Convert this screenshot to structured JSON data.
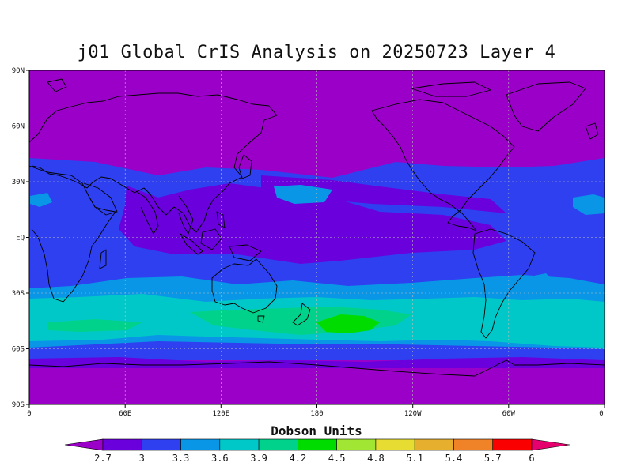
{
  "title": "j01 Global CrIS Analysis on 20250723 Layer 4",
  "colorbar_title": "Dobson Units",
  "y_ticks": [
    "90N",
    "60N",
    "30N",
    "EQ",
    "30S",
    "60S",
    "90S"
  ],
  "x_ticks": [
    "0",
    "60E",
    "120E",
    "180",
    "120W",
    "60W",
    "0"
  ],
  "colorbar": {
    "levels": [
      "2.7",
      "3",
      "3.3",
      "3.6",
      "3.9",
      "4.2",
      "4.5",
      "4.8",
      "5.1",
      "5.4",
      "5.7",
      "6"
    ],
    "colors": [
      "#9b00c8",
      "#6a00dc",
      "#2e40f0",
      "#0a96e6",
      "#00c8c8",
      "#00d28c",
      "#00dc00",
      "#a0e632",
      "#e6dc32",
      "#e6af2d",
      "#f08228",
      "#fa0000",
      "#e6006e"
    ]
  },
  "chart_data": {
    "type": "heatmap",
    "title": "j01 Global CrIS Analysis on 20250723 Layer 4",
    "x_ticks": [
      "0",
      "60E",
      "120E",
      "180",
      "120W",
      "60W",
      "0"
    ],
    "y_ticks": [
      "90N",
      "60N",
      "30N",
      "EQ",
      "30S",
      "60S",
      "90S"
    ],
    "xlim": [
      0,
      360
    ],
    "ylim": [
      -90,
      90
    ],
    "colorbar_label": "Dobson Units",
    "colorbar_levels": [
      2.7,
      3,
      3.3,
      3.6,
      3.9,
      4.2,
      4.5,
      4.8,
      5.1,
      5.4,
      5.7,
      6
    ],
    "grid": true
  }
}
